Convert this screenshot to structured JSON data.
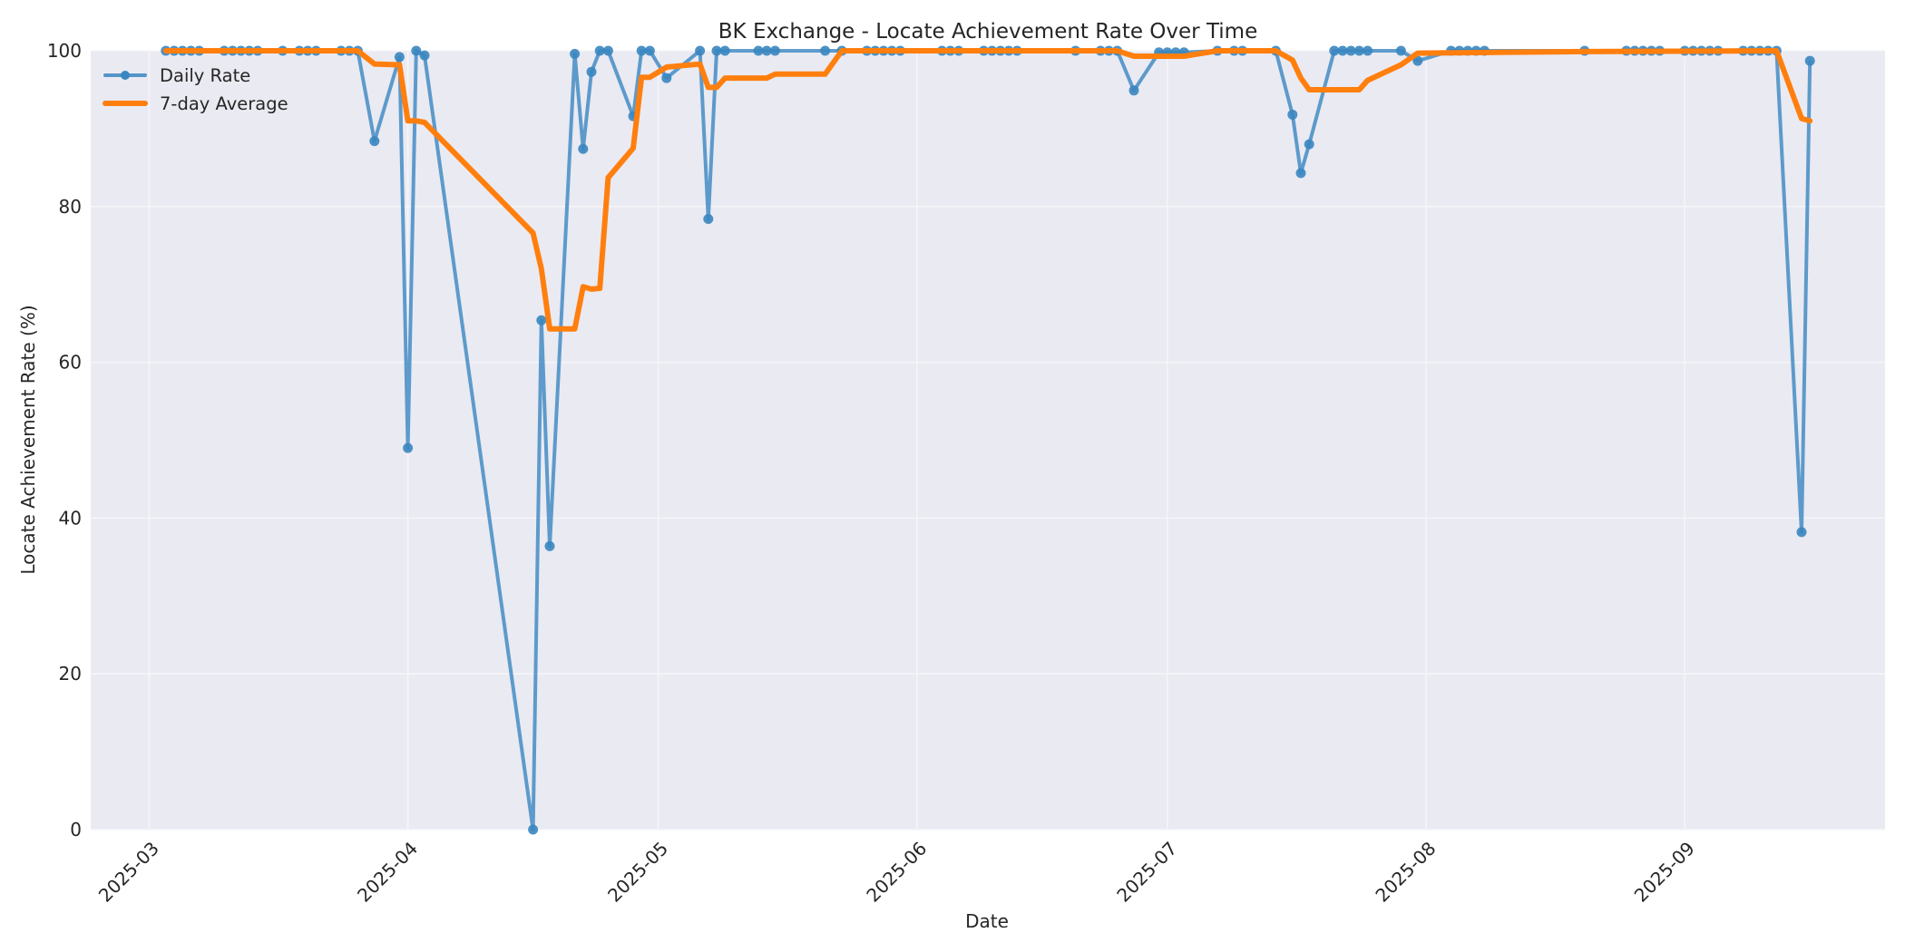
{
  "chart_data": {
    "type": "line",
    "title": "BK Exchange - Locate Achievement Rate Over Time",
    "xlabel": "Date",
    "ylabel": "Locate Achievement Rate (%)",
    "ylim": [
      0,
      100
    ],
    "xlim": [
      "2025-02-22",
      "2025-09-25"
    ],
    "yticks": [
      0,
      20,
      40,
      60,
      80,
      100
    ],
    "xticks": [
      "2025-03",
      "2025-04",
      "2025-05",
      "2025-06",
      "2025-07",
      "2025-08",
      "2025-09"
    ],
    "grid": true,
    "legend_position": "upper left",
    "colors": {
      "plot_background": "#eaeaf2",
      "grid": "#f5f5f9",
      "daily": "#3a86c0",
      "average": "#ff7f0e"
    },
    "series": [
      {
        "name": "Daily Rate",
        "style": "line-with-markers",
        "points": [
          [
            "2025-03-03",
            100
          ],
          [
            "2025-03-04",
            100
          ],
          [
            "2025-03-05",
            100
          ],
          [
            "2025-03-06",
            100
          ],
          [
            "2025-03-07",
            100
          ],
          [
            "2025-03-10",
            100
          ],
          [
            "2025-03-11",
            100
          ],
          [
            "2025-03-12",
            100
          ],
          [
            "2025-03-13",
            100
          ],
          [
            "2025-03-14",
            100
          ],
          [
            "2025-03-17",
            100
          ],
          [
            "2025-03-19",
            100
          ],
          [
            "2025-03-20",
            100
          ],
          [
            "2025-03-21",
            100
          ],
          [
            "2025-03-24",
            100
          ],
          [
            "2025-03-25",
            100
          ],
          [
            "2025-03-26",
            100
          ],
          [
            "2025-03-28",
            88.4
          ],
          [
            "2025-03-31",
            99.2
          ],
          [
            "2025-04-01",
            49.0
          ],
          [
            "2025-04-02",
            100
          ],
          [
            "2025-04-03",
            99.4
          ],
          [
            "2025-04-16",
            0.0
          ],
          [
            "2025-04-17",
            65.4
          ],
          [
            "2025-04-18",
            36.4
          ],
          [
            "2025-04-21",
            99.6
          ],
          [
            "2025-04-22",
            87.4
          ],
          [
            "2025-04-23",
            97.3
          ],
          [
            "2025-04-24",
            100
          ],
          [
            "2025-04-25",
            100
          ],
          [
            "2025-04-28",
            91.6
          ],
          [
            "2025-04-29",
            100
          ],
          [
            "2025-04-30",
            100
          ],
          [
            "2025-05-02",
            96.5
          ],
          [
            "2025-05-06",
            100
          ],
          [
            "2025-05-07",
            78.4
          ],
          [
            "2025-05-08",
            100
          ],
          [
            "2025-05-09",
            100
          ],
          [
            "2025-05-13",
            100
          ],
          [
            "2025-05-14",
            100
          ],
          [
            "2025-05-15",
            100
          ],
          [
            "2025-05-21",
            100
          ],
          [
            "2025-05-23",
            100
          ],
          [
            "2025-05-26",
            100
          ],
          [
            "2025-05-27",
            100
          ],
          [
            "2025-05-28",
            100
          ],
          [
            "2025-05-29",
            100
          ],
          [
            "2025-05-30",
            100
          ],
          [
            "2025-06-04",
            100
          ],
          [
            "2025-06-05",
            100
          ],
          [
            "2025-06-06",
            100
          ],
          [
            "2025-06-09",
            100
          ],
          [
            "2025-06-10",
            100
          ],
          [
            "2025-06-11",
            100
          ],
          [
            "2025-06-12",
            100
          ],
          [
            "2025-06-13",
            100
          ],
          [
            "2025-06-20",
            100
          ],
          [
            "2025-06-23",
            100
          ],
          [
            "2025-06-24",
            100
          ],
          [
            "2025-06-25",
            100
          ],
          [
            "2025-06-27",
            94.9
          ],
          [
            "2025-06-30",
            99.8
          ],
          [
            "2025-07-01",
            99.8
          ],
          [
            "2025-07-02",
            99.8
          ],
          [
            "2025-07-03",
            99.8
          ],
          [
            "2025-07-07",
            100
          ],
          [
            "2025-07-09",
            100
          ],
          [
            "2025-07-10",
            100
          ],
          [
            "2025-07-14",
            100
          ],
          [
            "2025-07-16",
            91.8
          ],
          [
            "2025-07-17",
            84.3
          ],
          [
            "2025-07-18",
            88.0
          ],
          [
            "2025-07-21",
            100
          ],
          [
            "2025-07-22",
            100
          ],
          [
            "2025-07-23",
            100
          ],
          [
            "2025-07-24",
            100
          ],
          [
            "2025-07-25",
            100
          ],
          [
            "2025-07-29",
            100
          ],
          [
            "2025-07-31",
            98.7
          ],
          [
            "2025-08-04",
            100
          ],
          [
            "2025-08-05",
            100
          ],
          [
            "2025-08-06",
            100
          ],
          [
            "2025-08-07",
            100
          ],
          [
            "2025-08-08",
            100
          ],
          [
            "2025-08-20",
            100
          ],
          [
            "2025-08-25",
            100
          ],
          [
            "2025-08-26",
            100
          ],
          [
            "2025-08-27",
            100
          ],
          [
            "2025-08-28",
            100
          ],
          [
            "2025-08-29",
            100
          ],
          [
            "2025-09-01",
            100
          ],
          [
            "2025-09-02",
            100
          ],
          [
            "2025-09-03",
            100
          ],
          [
            "2025-09-04",
            100
          ],
          [
            "2025-09-05",
            100
          ],
          [
            "2025-09-08",
            100
          ],
          [
            "2025-09-09",
            100
          ],
          [
            "2025-09-10",
            100
          ],
          [
            "2025-09-11",
            100
          ],
          [
            "2025-09-12",
            100
          ],
          [
            "2025-09-15",
            38.2
          ],
          [
            "2025-09-16",
            98.7
          ]
        ]
      },
      {
        "name": "7-day Average",
        "style": "thick-line",
        "points": [
          [
            "2025-03-03",
            100
          ],
          [
            "2025-03-26",
            100
          ],
          [
            "2025-03-28",
            98.3
          ],
          [
            "2025-03-31",
            98.2
          ],
          [
            "2025-04-01",
            91.0
          ],
          [
            "2025-04-02",
            91.0
          ],
          [
            "2025-04-03",
            90.8
          ],
          [
            "2025-04-16",
            76.6
          ],
          [
            "2025-04-17",
            72.0
          ],
          [
            "2025-04-18",
            64.3
          ],
          [
            "2025-04-21",
            64.3
          ],
          [
            "2025-04-22",
            69.7
          ],
          [
            "2025-04-23",
            69.4
          ],
          [
            "2025-04-24",
            69.5
          ],
          [
            "2025-04-25",
            83.7
          ],
          [
            "2025-04-28",
            87.5
          ],
          [
            "2025-04-29",
            96.6
          ],
          [
            "2025-04-30",
            96.6
          ],
          [
            "2025-05-02",
            97.9
          ],
          [
            "2025-05-06",
            98.3
          ],
          [
            "2025-05-07",
            95.3
          ],
          [
            "2025-05-08",
            95.3
          ],
          [
            "2025-05-09",
            96.5
          ],
          [
            "2025-05-14",
            96.5
          ],
          [
            "2025-05-15",
            97.0
          ],
          [
            "2025-05-21",
            97.0
          ],
          [
            "2025-05-23",
            100
          ],
          [
            "2025-06-25",
            100
          ],
          [
            "2025-06-27",
            99.3
          ],
          [
            "2025-07-03",
            99.3
          ],
          [
            "2025-07-07",
            100
          ],
          [
            "2025-07-14",
            100
          ],
          [
            "2025-07-16",
            98.8
          ],
          [
            "2025-07-17",
            96.5
          ],
          [
            "2025-07-18",
            95.0
          ],
          [
            "2025-07-24",
            95.0
          ],
          [
            "2025-07-25",
            96.2
          ],
          [
            "2025-07-29",
            98.2
          ],
          [
            "2025-07-31",
            99.7
          ],
          [
            "2025-08-20",
            99.9
          ],
          [
            "2025-09-12",
            100
          ],
          [
            "2025-09-15",
            91.3
          ],
          [
            "2025-09-16",
            91.0
          ]
        ]
      }
    ]
  },
  "legend": {
    "items": [
      {
        "label": "Daily Rate",
        "color": "#3a86c0"
      },
      {
        "label": "7-day Average",
        "color": "#ff7f0e"
      }
    ]
  }
}
